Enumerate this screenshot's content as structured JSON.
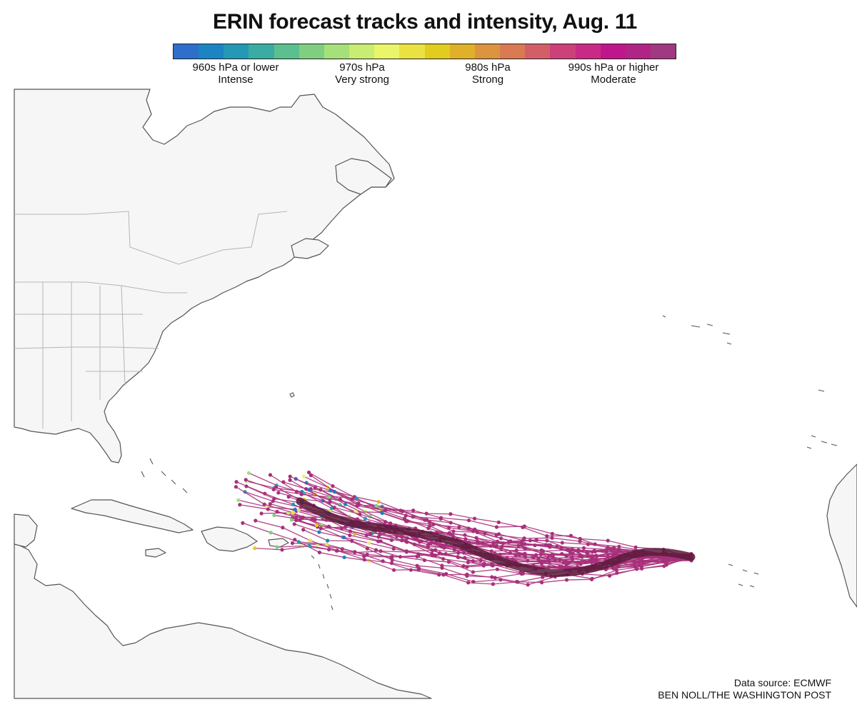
{
  "title": "ERIN forecast tracks and intensity, Aug. 11",
  "legend": {
    "colors": [
      "#2d6fcb",
      "#1a85c2",
      "#2399b5",
      "#3aaca3",
      "#5cbf8f",
      "#80cf80",
      "#a5e07a",
      "#c9ed72",
      "#eaf56a",
      "#e9e241",
      "#e2cc1d",
      "#e0b028",
      "#dc9440",
      "#d97a52",
      "#d25f68",
      "#cc417a",
      "#c92a86",
      "#c0168b",
      "#b02485",
      "#a0397f"
    ],
    "labels": [
      {
        "line1": "960s hPa or lower",
        "line2": "Intense"
      },
      {
        "line1": "970s hPa",
        "line2": "Very strong"
      },
      {
        "line1": "980s hPa",
        "line2": "Strong"
      },
      {
        "line1": "990s hPa or higher",
        "line2": "Moderate"
      }
    ]
  },
  "credits": {
    "source": "Data source: ECMWF",
    "byline": "BEN NOLL/THE WASHINGTON POST"
  },
  "map": {
    "land_color": "#f6f6f6",
    "coast_color": "#555555",
    "border_color": "#b5b5b5",
    "track_color": "#a8307a",
    "ensemble_mean_color": "#5a1a3a"
  }
}
